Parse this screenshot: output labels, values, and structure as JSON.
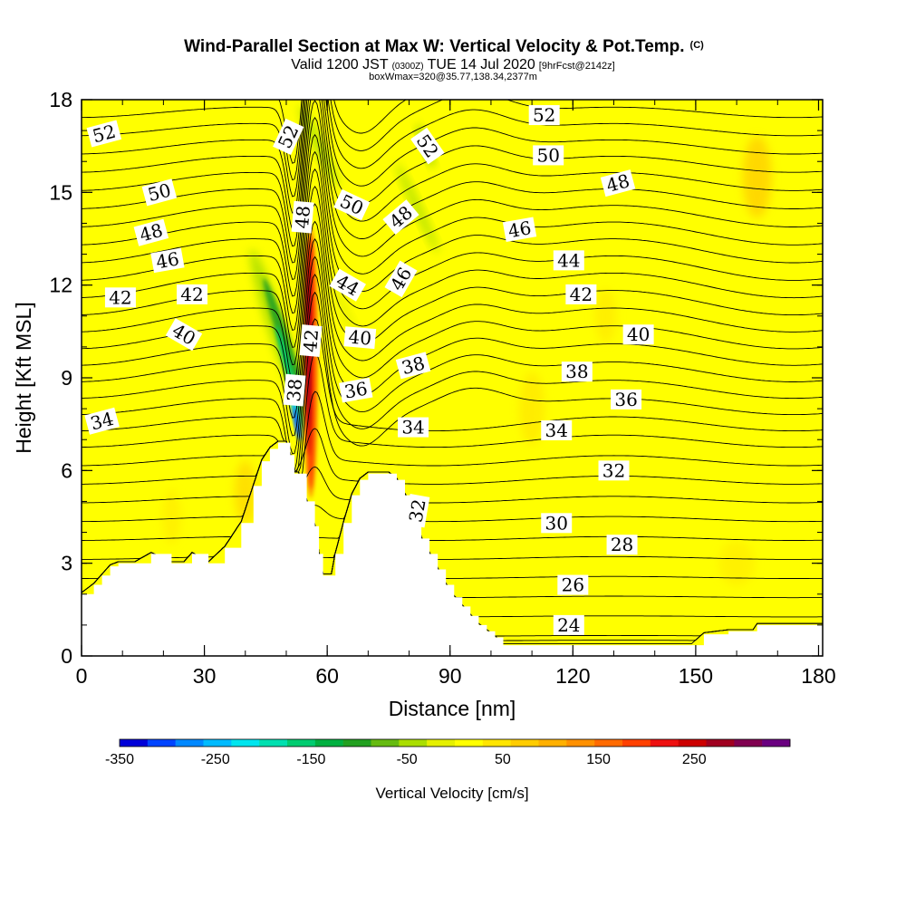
{
  "chart_data": {
    "type": "heatmap",
    "title": "Wind-Parallel Section at Max W: Vertical Velocity & Pot.Temp.",
    "title_unit": "(C)",
    "subtitle": {
      "valid": "Valid 1200 JST",
      "utc": "(0300Z)",
      "date": "TUE 14 Jul 2020",
      "forecast": "[9hrFcst@2142z]"
    },
    "box_note": "boxWmax=320@35.77,138.34,2377m",
    "xlabel": "Distance [nm]",
    "ylabel": "Height [Kft MSL]",
    "xlim": [
      0,
      181
    ],
    "ylim": [
      0,
      18
    ],
    "x_ticks": [
      "0",
      "30",
      "60",
      "90",
      "120",
      "150",
      "180"
    ],
    "y_ticks": [
      "0",
      "3",
      "6",
      "9",
      "12",
      "15",
      "18"
    ],
    "colorbar": {
      "label": "Vertical Velocity [cm/s]",
      "range": [
        -350,
        350
      ],
      "tick_labels": [
        "-350",
        "-250",
        "-150",
        "-50",
        "50",
        "150",
        "250"
      ],
      "colors": [
        "#0000d8",
        "#0044ff",
        "#0088ff",
        "#00bbff",
        "#00e5ee",
        "#00e0b0",
        "#00cc70",
        "#00b040",
        "#22a020",
        "#66bb11",
        "#aade00",
        "#e5f000",
        "#ffff00",
        "#ffe500",
        "#ffcc00",
        "#ffb000",
        "#ff9000",
        "#ff6a00",
        "#ff4000",
        "#ee1010",
        "#cc0000",
        "#a00020",
        "#800050",
        "#6a0080"
      ]
    },
    "terrain": [
      [
        0,
        2
      ],
      [
        3,
        2.3
      ],
      [
        5,
        2.6
      ],
      [
        7,
        2.9
      ],
      [
        9,
        3
      ],
      [
        13,
        3
      ],
      [
        17,
        3.3
      ],
      [
        22,
        3
      ],
      [
        25,
        3
      ],
      [
        27,
        3.3
      ],
      [
        31,
        3
      ],
      [
        35,
        3.5
      ],
      [
        39,
        4.3
      ],
      [
        42,
        5.5
      ],
      [
        44,
        6.3
      ],
      [
        46,
        6.7
      ],
      [
        48,
        6.9
      ],
      [
        50,
        6.9
      ],
      [
        51,
        6.5
      ],
      [
        52,
        5.9
      ],
      [
        53,
        5.9
      ],
      [
        55,
        5
      ],
      [
        57,
        4.2
      ],
      [
        58,
        3.3
      ],
      [
        59,
        2.6
      ],
      [
        61,
        2.6
      ],
      [
        62,
        3.3
      ],
      [
        64,
        4.3
      ],
      [
        66,
        5.2
      ],
      [
        68,
        5.7
      ],
      [
        70,
        5.9
      ],
      [
        73,
        5.9
      ],
      [
        75,
        5.9
      ],
      [
        77,
        5.7
      ],
      [
        79,
        5.2
      ],
      [
        81,
        4.8
      ],
      [
        83,
        3.8
      ],
      [
        85,
        3.3
      ],
      [
        87,
        2.8
      ],
      [
        89,
        2.3
      ],
      [
        91,
        1.9
      ],
      [
        93,
        1.6
      ],
      [
        95,
        1.3
      ],
      [
        97,
        1
      ],
      [
        99,
        0.8
      ],
      [
        101,
        0.6
      ],
      [
        103,
        0.35
      ],
      [
        110,
        0.35
      ],
      [
        120,
        0.35
      ],
      [
        130,
        0.35
      ],
      [
        140,
        0.35
      ],
      [
        149,
        0.35
      ],
      [
        152,
        0.7
      ],
      [
        158,
        0.8
      ],
      [
        164,
        0.8
      ],
      [
        165,
        1
      ],
      [
        172,
        1
      ],
      [
        181,
        1
      ]
    ],
    "isentropes": {
      "unit": "C",
      "levels": [
        22,
        23,
        24,
        25,
        26,
        27,
        28,
        29,
        30,
        31,
        32,
        33,
        34,
        35,
        36,
        37,
        38,
        39,
        40,
        41,
        42,
        43,
        44,
        45,
        46,
        47,
        48,
        49,
        50,
        51,
        52,
        53,
        54
      ],
      "label_values": [
        "52",
        "50",
        "48",
        "46",
        "42",
        "42",
        "40",
        "34",
        "52",
        "48",
        "38",
        "52",
        "50",
        "48",
        "44",
        "46",
        "42",
        "40",
        "38",
        "36",
        "34",
        "32",
        "52",
        "50",
        "48",
        "46",
        "44",
        "42",
        "40",
        "38",
        "36",
        "34",
        "32",
        "30",
        "28",
        "26",
        "24"
      ]
    },
    "updraft_core": {
      "x": 56,
      "y_range": [
        4.5,
        14.5
      ],
      "max_w": 320
    },
    "downdraft_core": {
      "x": 51,
      "y_range": [
        6.5,
        12.5
      ],
      "min_w": -350
    }
  }
}
